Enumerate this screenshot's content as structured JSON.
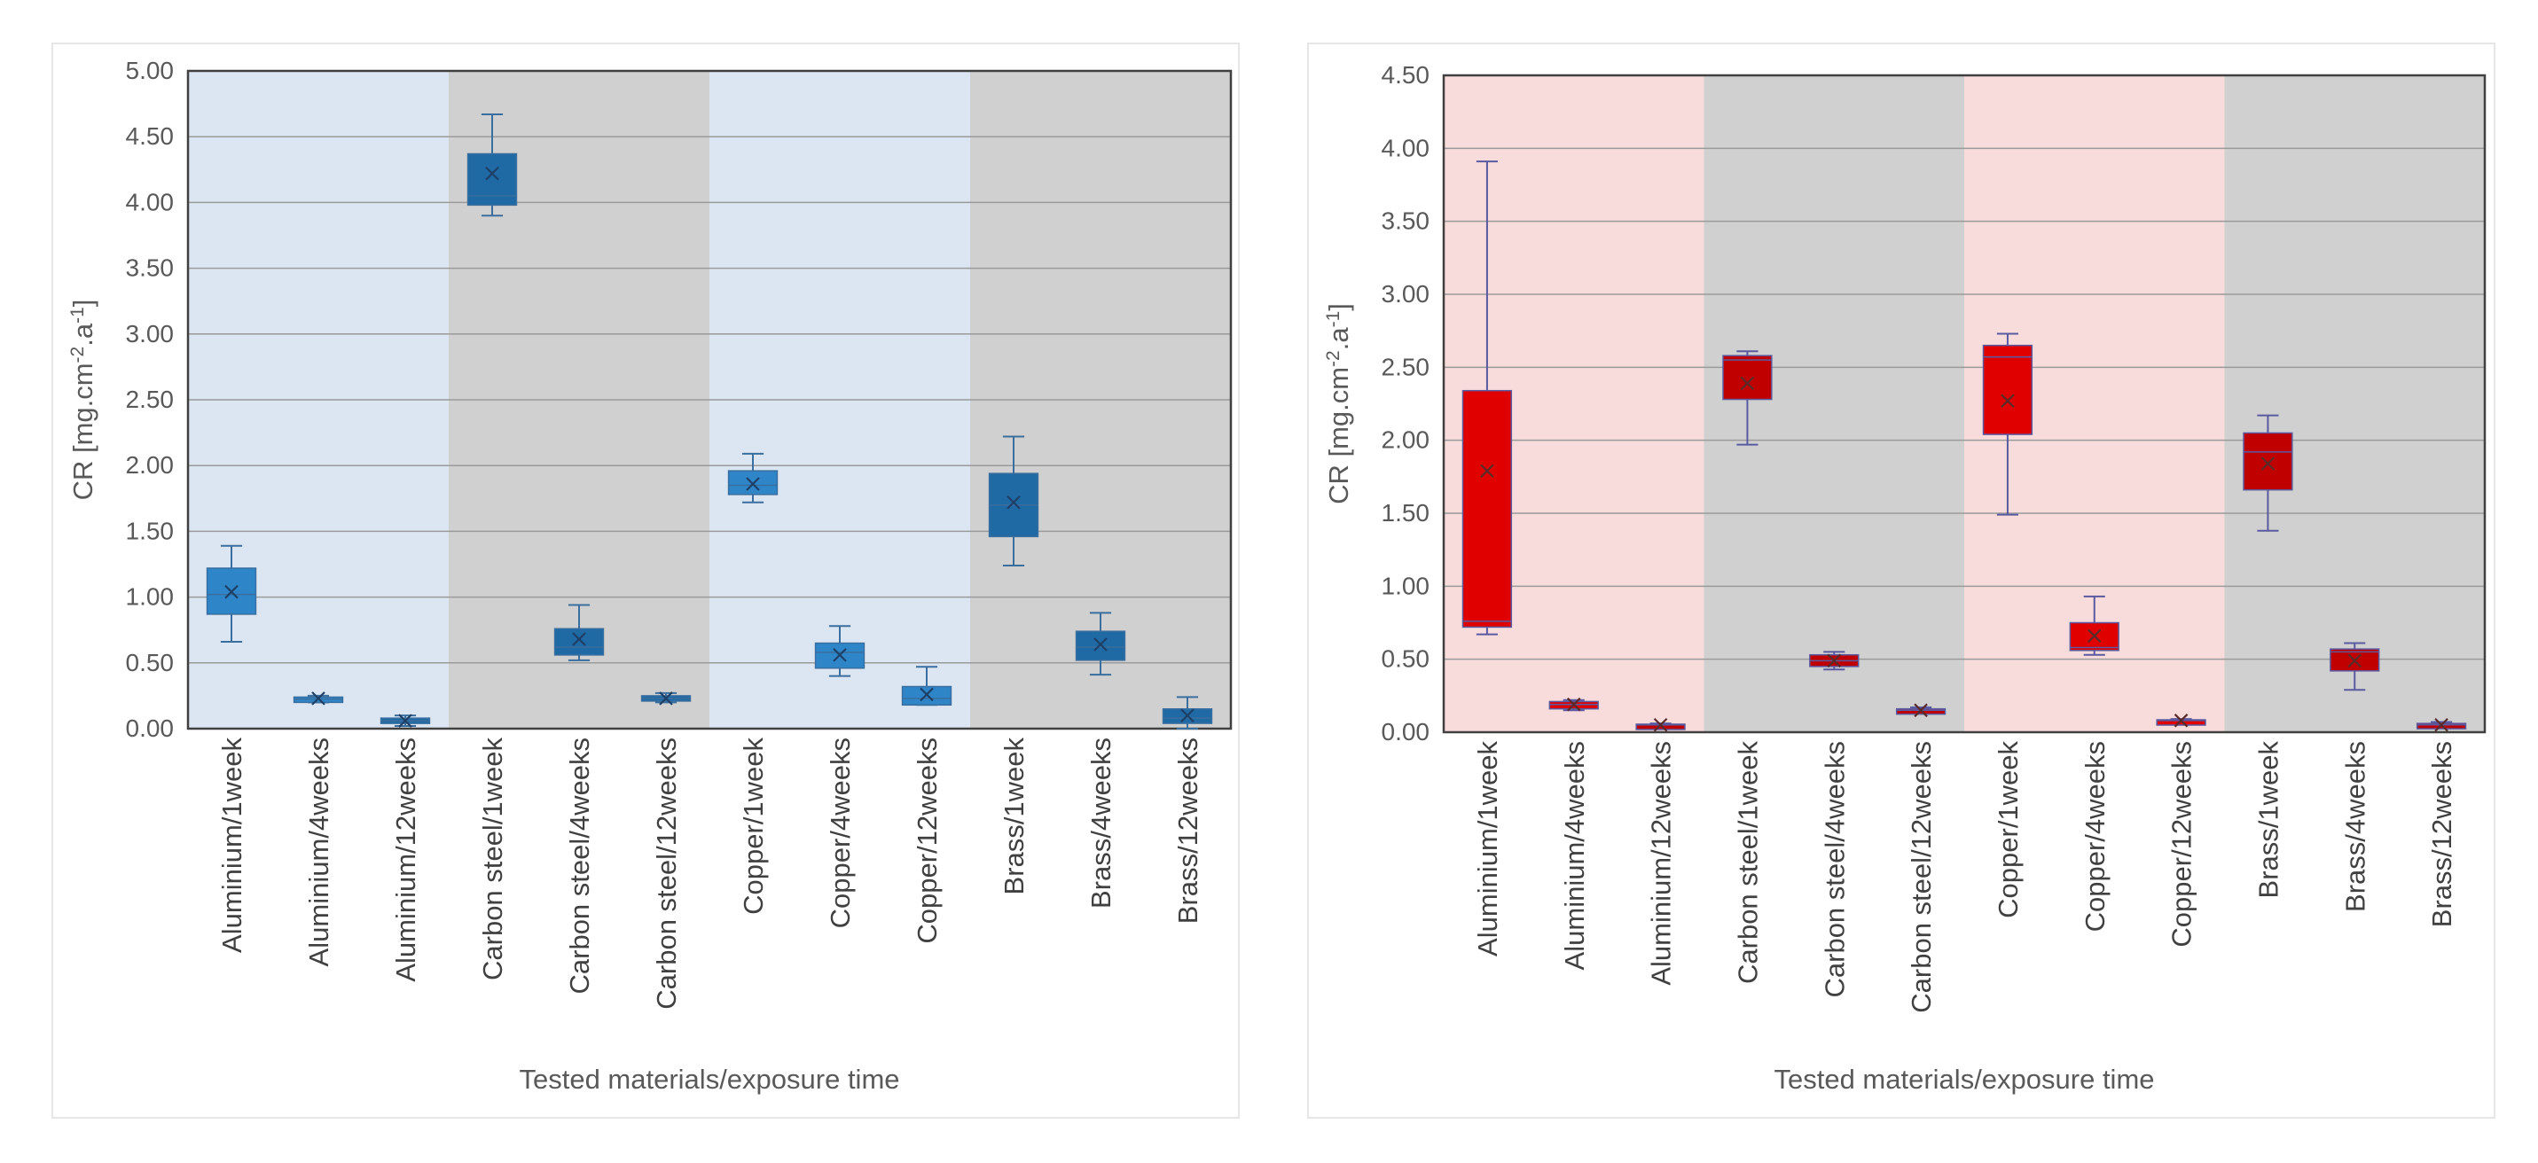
{
  "chart_data": [
    {
      "type": "box",
      "title": "",
      "xlabel": "Tested materials/exposure time",
      "ylabel": "CR [mg.cm-2.a-1]",
      "ylabel_parts": {
        "base": "CR [mg.cm",
        "sup1": "-2",
        "mid": ".a",
        "sup2": "-1",
        "end": "]"
      },
      "ylim": [
        0,
        5
      ],
      "yticks": [
        "0.00",
        "0.50",
        "1.00",
        "1.50",
        "2.00",
        "2.50",
        "3.00",
        "3.50",
        "4.00",
        "4.50",
        "5.00"
      ],
      "ytick_values": [
        0,
        0.5,
        1,
        1.5,
        2,
        2.5,
        3,
        3.5,
        4,
        4.5,
        5
      ],
      "grid": true,
      "band_colors": [
        "#dce6f2",
        "#d0d0d0",
        "#dce6f2",
        "#d0d0d0"
      ],
      "colors": {
        "box_light": "#2e86c9",
        "box_dark": "#1f6aa5",
        "whisker": "#3a6e9e",
        "mean_marker": "#1e3f66",
        "grid": "#9a9a9a",
        "frame": "#404040"
      },
      "categories": [
        "Aluminium/1week",
        "Aluminium/4weeks",
        "Aluminium/12weeks",
        "Carbon steel/1week",
        "Carbon steel/4weeks",
        "Carbon steel/12weeks",
        "Copper/1week",
        "Copper/4weeks",
        "Copper/12weeks",
        "Brass/1week",
        "Brass/4weeks",
        "Brass/12weeks"
      ],
      "groups": [
        "Aluminium",
        "Carbon steel",
        "Copper",
        "Brass"
      ],
      "boxes": [
        {
          "min": 0.66,
          "q1": 0.87,
          "median": 1.02,
          "q3": 1.22,
          "max": 1.39,
          "mean": 1.04
        },
        {
          "min": 0.2,
          "q1": 0.215,
          "median": 0.225,
          "q3": 0.24,
          "max": 0.25,
          "mean": 0.23
        },
        {
          "min": 0.02,
          "q1": 0.04,
          "median": 0.06,
          "q3": 0.08,
          "max": 0.1,
          "mean": 0.06
        },
        {
          "min": 3.9,
          "q1": 3.98,
          "median": 4.05,
          "q3": 4.37,
          "max": 4.67,
          "mean": 4.22
        },
        {
          "min": 0.52,
          "q1": 0.56,
          "median": 0.62,
          "q3": 0.76,
          "max": 0.94,
          "mean": 0.68
        },
        {
          "min": 0.2,
          "q1": 0.21,
          "median": 0.23,
          "q3": 0.25,
          "max": 0.27,
          "mean": 0.23
        },
        {
          "min": 1.72,
          "q1": 1.78,
          "median": 1.85,
          "q3": 1.96,
          "max": 2.09,
          "mean": 1.86
        },
        {
          "min": 0.4,
          "q1": 0.46,
          "median": 0.58,
          "q3": 0.65,
          "max": 0.78,
          "mean": 0.56
        },
        {
          "min": 0.18,
          "q1": 0.18,
          "median": 0.23,
          "q3": 0.32,
          "max": 0.47,
          "mean": 0.26
        },
        {
          "min": 1.24,
          "q1": 1.46,
          "median": 1.7,
          "q3": 1.94,
          "max": 2.22,
          "mean": 1.72
        },
        {
          "min": 0.41,
          "q1": 0.52,
          "median": 0.62,
          "q3": 0.74,
          "max": 0.88,
          "mean": 0.64
        },
        {
          "min": 0.0,
          "q1": 0.04,
          "median": 0.08,
          "q3": 0.15,
          "max": 0.24,
          "mean": 0.1
        }
      ]
    },
    {
      "type": "box",
      "title": "",
      "xlabel": "Tested materials/exposure time",
      "ylabel": "CR [mg.cm-2.a-1]",
      "ylabel_parts": {
        "base": "CR [mg.cm",
        "sup1": "-2",
        "mid": ".a",
        "sup2": "-1",
        "end": "]"
      },
      "ylim": [
        0,
        4.5
      ],
      "yticks": [
        "0.00",
        "0.50",
        "1.00",
        "1.50",
        "2.00",
        "2.50",
        "3.00",
        "3.50",
        "4.00",
        "4.50"
      ],
      "ytick_values": [
        0,
        0.5,
        1,
        1.5,
        2,
        2.5,
        3,
        3.5,
        4,
        4.5
      ],
      "grid": true,
      "band_colors": [
        "#f8dcdc",
        "#d0d0d0",
        "#f8dcdc",
        "#d0d0d0"
      ],
      "colors": {
        "box_light": "#e00000",
        "box_dark": "#c00000",
        "whisker": "#5a5aa0",
        "mean_marker": "#5a2a2a",
        "grid": "#9a9a9a",
        "frame": "#404040"
      },
      "categories": [
        "Aluminium/1week",
        "Aluminium/4weeks",
        "Aluminium/12weeks",
        "Carbon steel/1week",
        "Carbon steel/4weeks",
        "Carbon steel/12weeks",
        "Copper/1week",
        "Copper/4weeks",
        "Copper/12weeks",
        "Brass/1week",
        "Brass/4weeks",
        "Brass/12weeks"
      ],
      "groups": [
        "Aluminium",
        "Carbon steel",
        "Copper",
        "Brass"
      ],
      "boxes": [
        {
          "min": 0.67,
          "q1": 0.72,
          "median": 0.76,
          "q3": 2.34,
          "max": 3.91,
          "mean": 1.79
        },
        {
          "min": 0.15,
          "q1": 0.16,
          "median": 0.19,
          "q3": 0.21,
          "max": 0.22,
          "mean": 0.19
        },
        {
          "min": 0.04,
          "q1": 0.045,
          "median": 0.05,
          "q3": 0.055,
          "max": 0.06,
          "mean": 0.05
        },
        {
          "min": 1.97,
          "q1": 2.28,
          "median": 2.55,
          "q3": 2.58,
          "max": 2.61,
          "mean": 2.39
        },
        {
          "min": 0.43,
          "q1": 0.45,
          "median": 0.49,
          "q3": 0.53,
          "max": 0.55,
          "mean": 0.49
        },
        {
          "min": 0.13,
          "q1": 0.14,
          "median": 0.15,
          "q3": 0.16,
          "max": 0.17,
          "mean": 0.15
        },
        {
          "min": 1.49,
          "q1": 2.04,
          "median": 2.57,
          "q3": 2.65,
          "max": 2.73,
          "mean": 2.27
        },
        {
          "min": 0.53,
          "q1": 0.56,
          "median": 0.58,
          "q3": 0.75,
          "max": 0.93,
          "mean": 0.66
        },
        {
          "min": 0.07,
          "q1": 0.075,
          "median": 0.08,
          "q3": 0.085,
          "max": 0.09,
          "mean": 0.08
        },
        {
          "min": 1.38,
          "q1": 1.66,
          "median": 1.92,
          "q3": 2.05,
          "max": 2.17,
          "mean": 1.84
        },
        {
          "min": 0.29,
          "q1": 0.42,
          "median": 0.55,
          "q3": 0.57,
          "max": 0.61,
          "mean": 0.49
        },
        {
          "min": 0.03,
          "q1": 0.04,
          "median": 0.05,
          "q3": 0.06,
          "max": 0.07,
          "mean": 0.05
        }
      ]
    }
  ]
}
